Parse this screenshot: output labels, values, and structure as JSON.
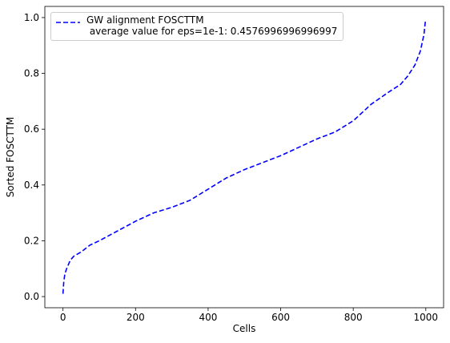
{
  "chart_data": {
    "type": "line",
    "x_label": "Cells",
    "y_label": "Sorted FOSCTTM",
    "x": [
      0,
      2,
      5,
      10,
      20,
      30,
      50,
      75,
      100,
      150,
      200,
      250,
      300,
      350,
      400,
      450,
      500,
      550,
      600,
      650,
      700,
      750,
      800,
      850,
      900,
      930,
      950,
      970,
      985,
      995,
      999
    ],
    "series": [
      {
        "name": "GW alignment FOSCTTM\n average value for eps=1e-1: 0.4576996996996997",
        "color": "#0000ff",
        "dashed": true,
        "values": [
          0.01,
          0.05,
          0.08,
          0.1,
          0.13,
          0.145,
          0.16,
          0.185,
          0.2,
          0.235,
          0.27,
          0.3,
          0.32,
          0.345,
          0.385,
          0.425,
          0.455,
          0.48,
          0.505,
          0.535,
          0.565,
          0.59,
          0.63,
          0.69,
          0.735,
          0.76,
          0.79,
          0.83,
          0.88,
          0.94,
          0.99
        ]
      }
    ],
    "xlim": [
      -50,
      1049
    ],
    "xticks": [
      0,
      200,
      400,
      600,
      800,
      1000
    ],
    "ylim": [
      -0.04,
      1.04
    ],
    "yticks": [
      {
        "value": 0,
        "label": "0.0"
      },
      0.2,
      0.4,
      0.6,
      0.8,
      {
        "value": 1,
        "label": "1.0"
      }
    ],
    "legend": "upper left",
    "grid": false
  }
}
